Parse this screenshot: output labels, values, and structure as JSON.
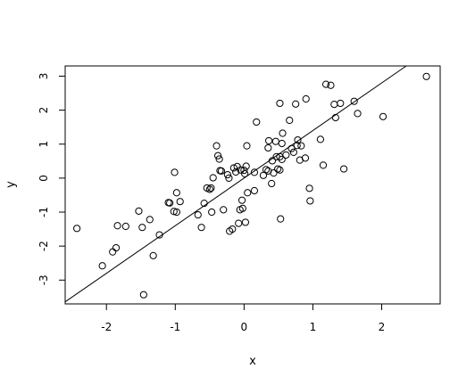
{
  "chart_data": {
    "type": "scatter",
    "title": "",
    "xlabel": "x",
    "ylabel": "y",
    "xlim": [
      -2.6,
      2.85
    ],
    "ylim": [
      -3.7,
      3.3
    ],
    "x_ticks": [
      -2,
      -1,
      0,
      1,
      2
    ],
    "y_ticks": [
      -3,
      -2,
      -1,
      0,
      1,
      2,
      3
    ],
    "grid": false,
    "legend": "none",
    "point_style": "open-circle",
    "regression_line": {
      "intercept": 0.0,
      "slope": 1.4
    },
    "points": [
      [
        -2.43,
        -1.48
      ],
      [
        -2.06,
        -2.58
      ],
      [
        -1.91,
        -2.17
      ],
      [
        -1.86,
        -2.05
      ],
      [
        -1.84,
        -1.4
      ],
      [
        -1.72,
        -1.42
      ],
      [
        -1.53,
        -0.97
      ],
      [
        -1.48,
        -1.45
      ],
      [
        -1.46,
        -3.43
      ],
      [
        -1.37,
        -1.22
      ],
      [
        -1.32,
        -2.28
      ],
      [
        -1.23,
        -1.67
      ],
      [
        -1.1,
        -0.72
      ],
      [
        -1.08,
        -0.73
      ],
      [
        -1.02,
        -0.98
      ],
      [
        -1.01,
        0.17
      ],
      [
        -0.98,
        -1.0
      ],
      [
        -0.98,
        -0.43
      ],
      [
        -0.93,
        -0.69
      ],
      [
        -0.67,
        -1.08
      ],
      [
        -0.62,
        -1.45
      ],
      [
        -0.58,
        -0.74
      ],
      [
        -0.54,
        -0.29
      ],
      [
        -0.5,
        -0.33
      ],
      [
        -0.48,
        -0.29
      ],
      [
        -0.47,
        -1.0
      ],
      [
        -0.45,
        0.01
      ],
      [
        -0.4,
        0.95
      ],
      [
        -0.38,
        0.66
      ],
      [
        -0.36,
        0.56
      ],
      [
        -0.35,
        0.22
      ],
      [
        -0.33,
        0.21
      ],
      [
        -0.3,
        -0.93
      ],
      [
        -0.24,
        0.1
      ],
      [
        -0.22,
        0.0
      ],
      [
        -0.21,
        -1.56
      ],
      [
        -0.17,
        -1.5
      ],
      [
        -0.15,
        0.3
      ],
      [
        -0.12,
        0.18
      ],
      [
        -0.1,
        0.34
      ],
      [
        -0.08,
        -1.33
      ],
      [
        -0.06,
        -0.93
      ],
      [
        -0.05,
        0.24
      ],
      [
        -0.03,
        -0.65
      ],
      [
        -0.02,
        -0.89
      ],
      [
        0.0,
        0.23
      ],
      [
        0.01,
        0.13
      ],
      [
        0.02,
        -1.3
      ],
      [
        0.03,
        0.35
      ],
      [
        0.04,
        0.95
      ],
      [
        0.05,
        -0.43
      ],
      [
        0.15,
        -0.37
      ],
      [
        0.15,
        0.17
      ],
      [
        0.18,
        1.65
      ],
      [
        0.28,
        0.08
      ],
      [
        0.32,
        0.25
      ],
      [
        0.35,
        0.21
      ],
      [
        0.35,
        0.89
      ],
      [
        0.36,
        1.1
      ],
      [
        0.4,
        -0.16
      ],
      [
        0.41,
        0.51
      ],
      [
        0.43,
        0.15
      ],
      [
        0.46,
        1.08
      ],
      [
        0.47,
        0.63
      ],
      [
        0.49,
        0.27
      ],
      [
        0.52,
        0.63
      ],
      [
        0.52,
        0.24
      ],
      [
        0.52,
        2.2
      ],
      [
        0.53,
        -1.2
      ],
      [
        0.55,
        0.55
      ],
      [
        0.55,
        1.02
      ],
      [
        0.56,
        1.32
      ],
      [
        0.61,
        0.68
      ],
      [
        0.66,
        1.7
      ],
      [
        0.69,
        0.87
      ],
      [
        0.72,
        0.76
      ],
      [
        0.75,
        2.18
      ],
      [
        0.77,
        0.96
      ],
      [
        0.78,
        1.12
      ],
      [
        0.81,
        0.53
      ],
      [
        0.83,
        0.95
      ],
      [
        0.89,
        0.59
      ],
      [
        0.9,
        2.33
      ],
      [
        0.95,
        -0.3
      ],
      [
        0.96,
        -0.67
      ],
      [
        1.11,
        1.14
      ],
      [
        1.15,
        0.38
      ],
      [
        1.19,
        2.76
      ],
      [
        1.26,
        2.73
      ],
      [
        1.31,
        2.17
      ],
      [
        1.33,
        1.78
      ],
      [
        1.4,
        2.2
      ],
      [
        1.45,
        0.27
      ],
      [
        1.6,
        2.26
      ],
      [
        1.65,
        1.9
      ],
      [
        2.02,
        1.81
      ],
      [
        2.65,
        2.99
      ]
    ]
  }
}
